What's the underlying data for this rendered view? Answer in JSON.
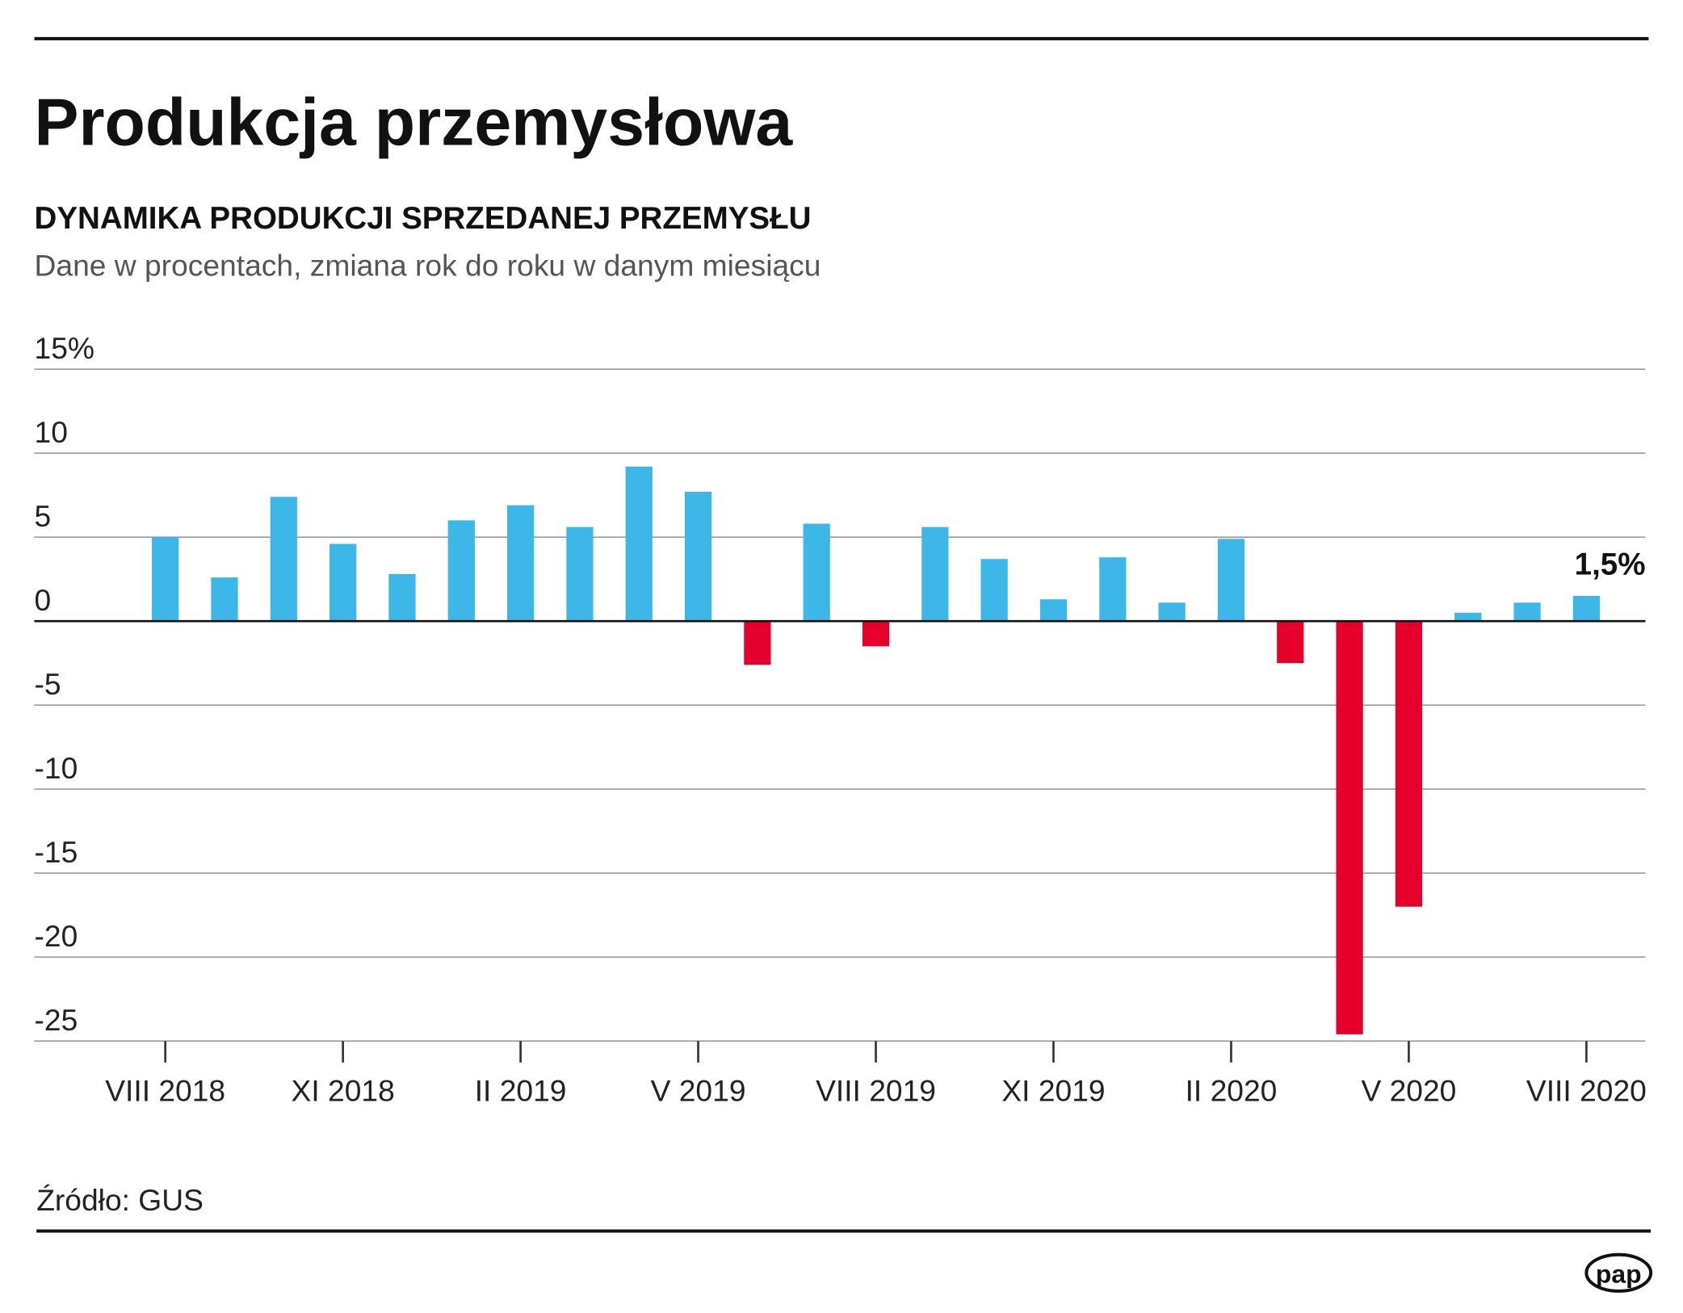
{
  "chart_data": {
    "type": "bar",
    "title": "Produkcja przemysłowa",
    "subtitle": "DYNAMIKA PRODUKCJI SPRZEDANEJ PRZEMYSŁU",
    "description": "Dane w procentach, zmiana rok do roku w danym miesiącu",
    "source": "Źródło: GUS",
    "logo": "pap",
    "categories": [
      "VIII 2018",
      null,
      null,
      "XI 2018",
      null,
      null,
      "II 2019",
      null,
      null,
      "V 2019",
      null,
      null,
      "VIII 2019",
      null,
      null,
      "XI 2019",
      null,
      null,
      "II 2020",
      null,
      null,
      "V 2020",
      null,
      null,
      "VIII 2020"
    ],
    "values": [
      5.0,
      2.6,
      7.4,
      4.6,
      2.8,
      6.0,
      6.9,
      5.6,
      9.2,
      7.7,
      -2.6,
      5.8,
      -1.5,
      5.6,
      3.7,
      1.3,
      3.8,
      1.1,
      4.9,
      -2.5,
      -24.6,
      -17.0,
      0.5,
      1.1,
      1.5
    ],
    "value_labels": [
      null,
      null,
      null,
      null,
      null,
      null,
      null,
      null,
      null,
      null,
      null,
      null,
      null,
      null,
      null,
      null,
      null,
      null,
      null,
      null,
      null,
      null,
      null,
      null,
      "1,5%"
    ],
    "color": "#3db7e8",
    "negative_color": "#e4002b",
    "ylim": [
      -25,
      15
    ],
    "yticks": [
      -25,
      -20,
      -15,
      -10,
      -5,
      0,
      5,
      10,
      {
        "value": 15,
        "label": "15%"
      }
    ],
    "grid": true
  }
}
